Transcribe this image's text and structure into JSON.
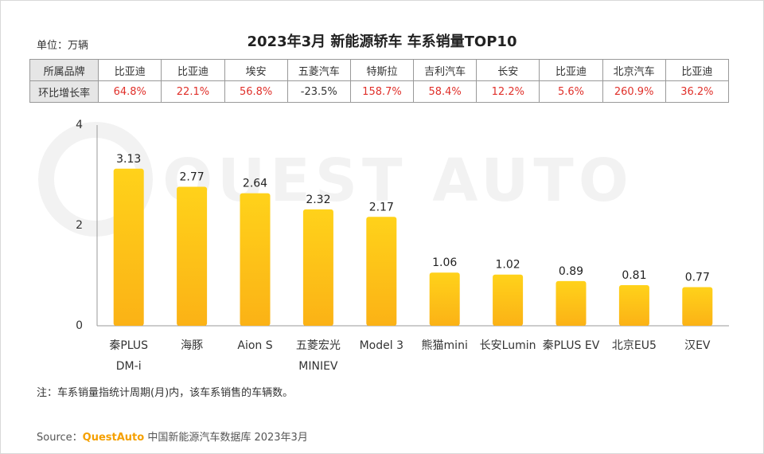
{
  "header": {
    "unit": "单位：万辆",
    "title": "2023年3月 新能源轿车 车系销量TOP10"
  },
  "table": {
    "row1_label": "所属品牌",
    "row2_label": "环比增长率",
    "brands": [
      "比亚迪",
      "比亚迪",
      "埃安",
      "五菱汽车",
      "特斯拉",
      "吉利汽车",
      "长安",
      "比亚迪",
      "北京汽车",
      "比亚迪"
    ],
    "growth": [
      "64.8%",
      "22.1%",
      "56.8%",
      "-23.5%",
      "158.7%",
      "58.4%",
      "12.2%",
      "5.6%",
      "260.9%",
      "36.2%"
    ],
    "colors": {
      "positive": "#e0302a",
      "negative": "#333333"
    }
  },
  "chart_data": {
    "type": "bar",
    "categories": [
      "秦PLUS\nDM-i",
      "海豚",
      "Aion S",
      "五菱宏光\nMINIEV",
      "Model 3",
      "熊猫mini",
      "长安Lumin",
      "秦PLUS EV",
      "北京EU5",
      "汉EV"
    ],
    "values": [
      3.13,
      2.77,
      2.64,
      2.32,
      2.17,
      1.06,
      1.02,
      0.89,
      0.81,
      0.77
    ],
    "value_labels": [
      "3.13",
      "2.77",
      "2.64",
      "2.32",
      "2.17",
      "1.06",
      "1.02",
      "0.89",
      "0.81",
      "0.77"
    ],
    "ylim": [
      0,
      4
    ],
    "yticks": [
      "0",
      "2",
      "4"
    ],
    "ytick_values": [
      0,
      2,
      4
    ],
    "grid": false,
    "colors": {
      "bar_top": "#ffd21a",
      "bar_bottom": "#fbb216"
    },
    "watermark": "QUEST AUTO"
  },
  "footer": {
    "note": "注：车系销量指统计周期(月)内，该车系销售的车辆数。",
    "source_prefix": "Source：",
    "source_brand": "QuestAuto",
    "source_rest": " 中国新能源汽车数据库 2023年3月"
  }
}
